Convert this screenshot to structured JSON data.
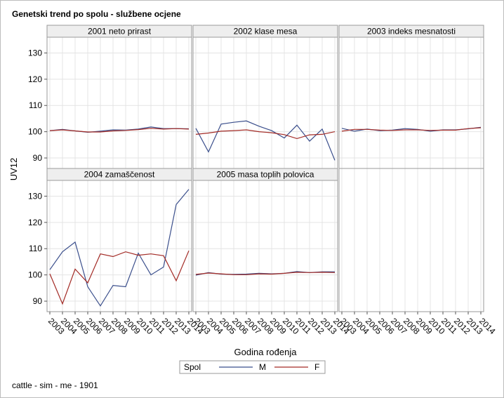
{
  "page": {
    "title": "Genetski trend po spolu - službene ocjene",
    "footer": "cattle - sim - me - 1901"
  },
  "chart_data": {
    "type": "line",
    "xlabel": "Godina rođenja",
    "ylabel": "UV12",
    "ylim": [
      86,
      136
    ],
    "yticks": [
      90,
      100,
      110,
      120,
      130
    ],
    "x": [
      "2003",
      "2004",
      "2005",
      "2006",
      "2007",
      "2008",
      "2009",
      "2010",
      "2011",
      "2012",
      "2013",
      "2014"
    ],
    "grid": true,
    "legend": {
      "title": "Spol",
      "position": "bottom-center",
      "entries": [
        {
          "name": "M",
          "color": "#3b4f8c"
        },
        {
          "name": "F",
          "color": "#a32b26"
        }
      ]
    },
    "panels": [
      {
        "title": "2001 neto prirast",
        "series": [
          {
            "name": "M",
            "values": [
              100.4,
              100.9,
              100.3,
              99.8,
              100.2,
              100.7,
              100.6,
              101.0,
              101.8,
              101.2,
              101.2,
              101.1
            ]
          },
          {
            "name": "F",
            "values": [
              100.4,
              100.7,
              100.3,
              99.9,
              99.9,
              100.3,
              100.5,
              100.8,
              101.3,
              101.0,
              101.2,
              101.0
            ]
          }
        ]
      },
      {
        "title": "2002 klase mesa",
        "series": [
          {
            "name": "M",
            "values": [
              101.3,
              92.3,
              102.9,
              103.6,
              104.1,
              102.1,
              100.4,
              97.6,
              102.5,
              96.4,
              101.0,
              89.1
            ]
          },
          {
            "name": "F",
            "values": [
              99.0,
              99.5,
              100.2,
              100.4,
              100.7,
              100.0,
              99.6,
              98.9,
              97.4,
              98.8,
              99.0,
              100.0
            ]
          }
        ]
      },
      {
        "title": "2003 indeks mesnatosti",
        "series": [
          {
            "name": "M",
            "values": [
              101.3,
              100.2,
              101.0,
              100.4,
              100.6,
              101.2,
              100.9,
              100.2,
              100.7,
              100.7,
              101.1,
              101.7
            ]
          },
          {
            "name": "F",
            "values": [
              100.2,
              100.9,
              100.9,
              100.6,
              100.5,
              100.7,
              100.7,
              100.5,
              100.6,
              100.6,
              101.2,
              101.5
            ]
          }
        ]
      },
      {
        "title": "2004 zamaščenost",
        "series": [
          {
            "name": "M",
            "values": [
              102.0,
              108.8,
              112.5,
              95.5,
              88.2,
              96.0,
              95.5,
              108.3,
              100.0,
              103.0,
              126.8,
              132.6
            ]
          },
          {
            "name": "F",
            "values": [
              100.4,
              89.0,
              102.2,
              97.0,
              108.0,
              107.0,
              108.8,
              107.5,
              108.0,
              107.3,
              97.8,
              109.2
            ]
          }
        ]
      },
      {
        "title": "2005 masa toplih polovica",
        "series": [
          {
            "name": "M",
            "values": [
              99.9,
              100.9,
              100.3,
              100.2,
              100.3,
              100.6,
              100.4,
              100.6,
              101.3,
              100.9,
              101.2,
              101.2
            ]
          },
          {
            "name": "F",
            "values": [
              100.2,
              100.7,
              100.4,
              100.1,
              100.1,
              100.4,
              100.3,
              100.6,
              101.0,
              100.9,
              101.0,
              100.9
            ]
          }
        ]
      }
    ]
  }
}
